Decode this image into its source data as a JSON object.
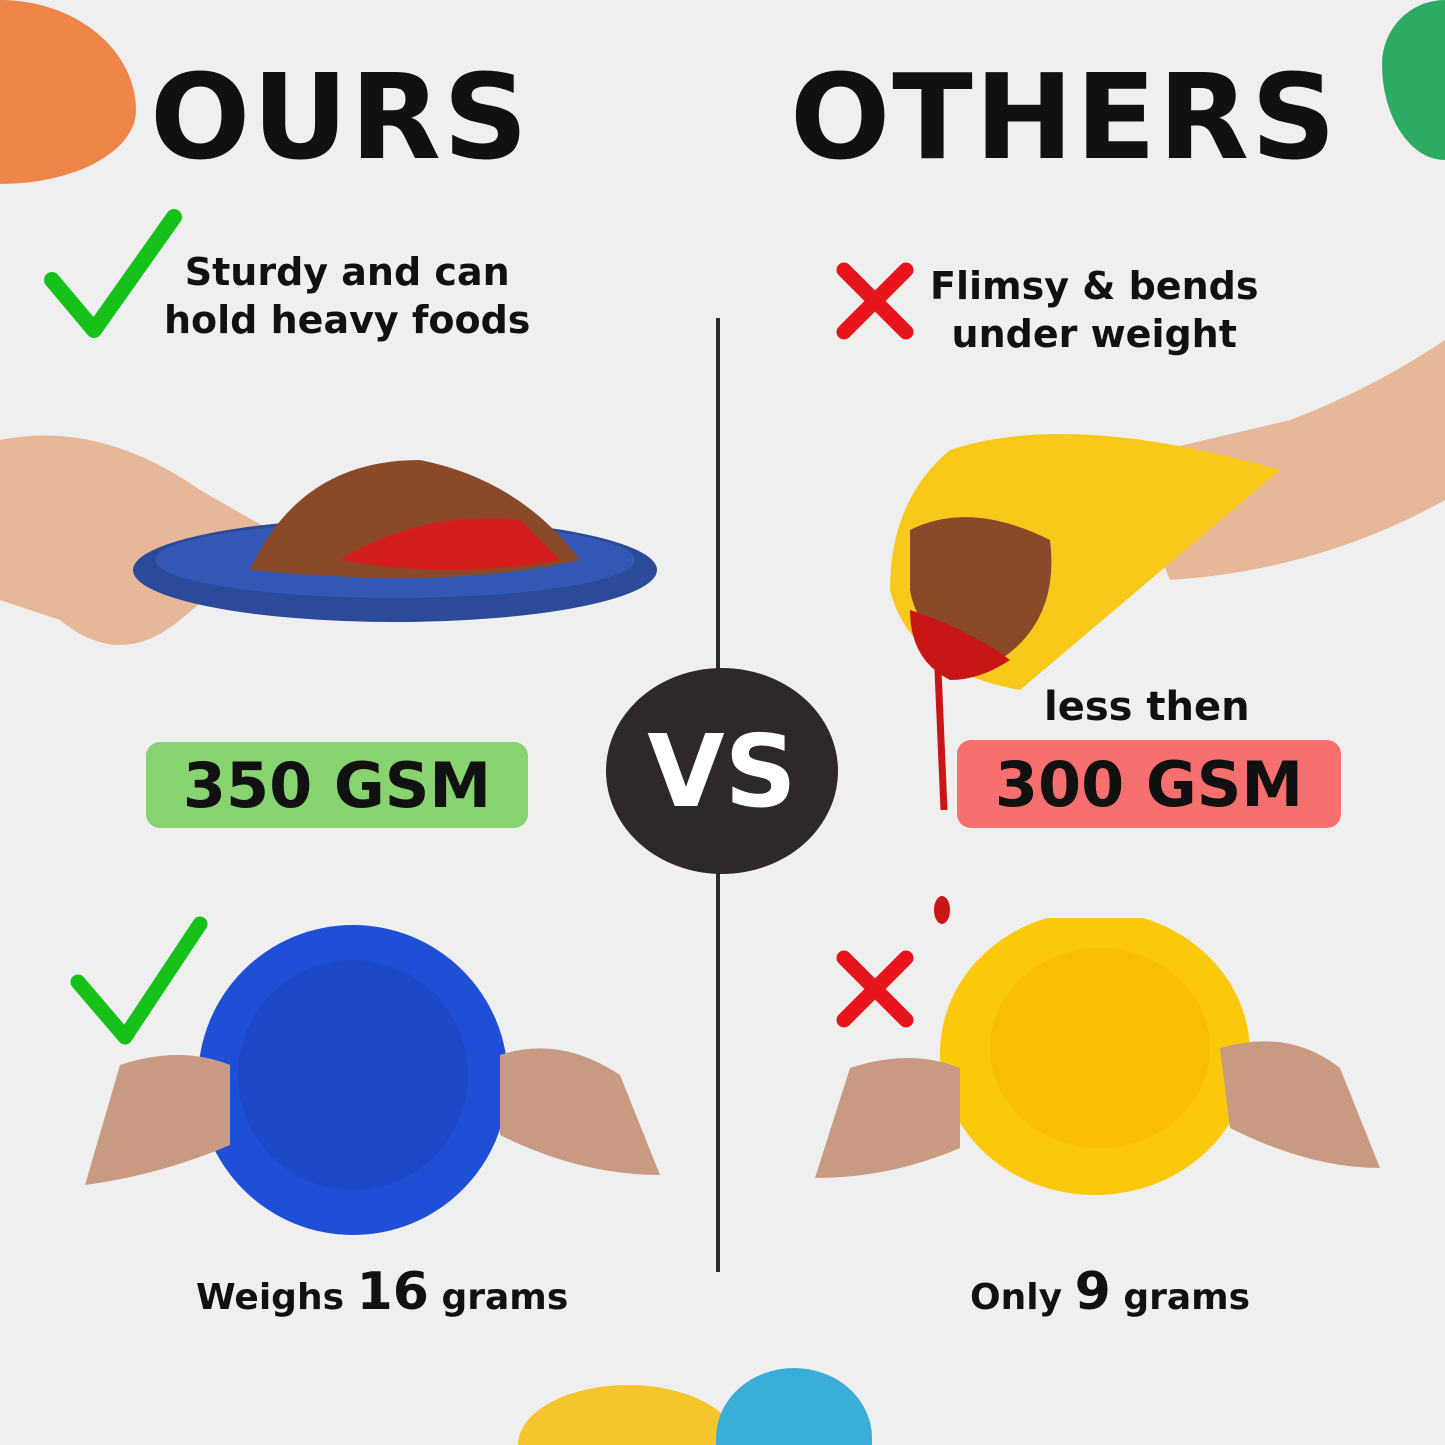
{
  "colors": {
    "background": "#efefef",
    "ours_badge": "#86d36f",
    "others_badge": "#f76f6f",
    "vs_circle": "#2e2829",
    "check": "#16c21a",
    "cross": "#e8141c",
    "ours_plate": "#1f4fd6",
    "others_plate": "#fcc90a"
  },
  "ours": {
    "title": "OURS",
    "claim_icon": "check-icon",
    "claim_line1": "Sturdy and can",
    "claim_line2": "hold heavy foods",
    "gsm": "350 GSM",
    "weight_prefix": "Weighs",
    "weight_value": "16",
    "weight_suffix": "grams"
  },
  "others": {
    "title": "OTHERS",
    "claim_icon": "cross-icon",
    "claim_line1": "Flimsy & bends",
    "claim_line2": "under weight",
    "gsm_prefix": "less then",
    "gsm": "300 GSM",
    "weight_prefix": "Only",
    "weight_value": "9",
    "weight_suffix": "grams"
  },
  "vs_label": "VS"
}
